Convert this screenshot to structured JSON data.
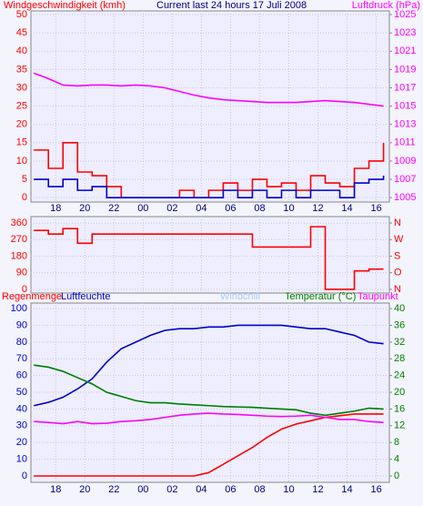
{
  "chart_data": [
    {
      "type": "line",
      "title": "Current last 24 hours 17 Juli 2008",
      "y_label": "Windgeschwindigkeit (kmh)",
      "y2_label": "Luftdruck (hPa)",
      "x": [
        16.5,
        17.5,
        18.5,
        19.5,
        20.5,
        21.5,
        22.5,
        23.5,
        24.5,
        25.5,
        26.5,
        27.5,
        28.5,
        29.5,
        30.5,
        31.5,
        32.5,
        33.5,
        34.5,
        35.5,
        36.5,
        37.5,
        38.5,
        39.5,
        40.5
      ],
      "xlim": [
        16.3,
        40.9
      ],
      "xticks": [
        18,
        20,
        22,
        {
          "value": 24,
          "label": "00"
        },
        {
          "value": 26,
          "label": "02"
        },
        {
          "value": 28,
          "label": "04"
        },
        {
          "value": 30,
          "label": "06"
        },
        {
          "value": 32,
          "label": "08"
        },
        {
          "value": 34,
          "label": "10"
        },
        {
          "value": 36,
          "label": "12"
        },
        {
          "value": 38,
          "label": "14"
        },
        {
          "value": 40,
          "label": "16"
        }
      ],
      "ylim": [
        -1.2,
        51
      ],
      "yticks": [
        0,
        5,
        10,
        15,
        20,
        25,
        30,
        35,
        40,
        45,
        50
      ],
      "ytick_color": "#ff0000",
      "y2lim": [
        1004.52,
        1025.4
      ],
      "y2ticks": [
        1005,
        1007,
        1009,
        1011,
        1013,
        1015,
        1017,
        1019,
        1021,
        1023,
        1025
      ],
      "y2tick_color": "#ff00ff",
      "grid": true,
      "series": [
        {
          "color": "#ff0000",
          "step": true,
          "values": [
            13,
            8,
            15,
            7,
            6,
            3,
            0,
            0,
            0,
            0,
            2,
            0,
            2,
            4,
            2,
            5,
            3,
            4,
            2,
            6,
            4,
            3,
            8,
            10,
            15
          ]
        },
        {
          "color": "#0000cc",
          "step": true,
          "values": [
            5,
            3,
            5,
            2,
            3,
            0,
            0,
            0,
            0,
            0,
            0,
            0,
            0,
            2,
            0,
            2,
            0,
            2,
            0,
            2,
            2,
            0,
            4,
            5,
            6
          ]
        },
        {
          "color": "#ff00ff",
          "axis": "y2",
          "values": [
            1018.6,
            1018,
            1017.3,
            1017.2,
            1017.3,
            1017.3,
            1017.2,
            1017.3,
            1017.2,
            1017,
            1016.6,
            1016.2,
            1015.9,
            1015.7,
            1015.6,
            1015.5,
            1015.4,
            1015.4,
            1015.4,
            1015.5,
            1015.6,
            1015.5,
            1015.4,
            1015.2,
            1015
          ]
        }
      ]
    },
    {
      "type": "line",
      "x": [
        16.5,
        17.5,
        18.5,
        19.5,
        20.5,
        21.5,
        22.5,
        23.5,
        24.5,
        25.5,
        26.5,
        27.5,
        28.5,
        29.5,
        30.5,
        31.5,
        32.5,
        33.5,
        34.5,
        35.5,
        36.5,
        37.5,
        38.5,
        39.5,
        40.5
      ],
      "xlim": [
        16.3,
        40.9
      ],
      "ylim": [
        -20,
        395
      ],
      "yticks": [
        0,
        90,
        180,
        270,
        360
      ],
      "ytick_color": "#ff0000",
      "y2lim": [
        -20,
        395
      ],
      "y2ticks": [
        {
          "value": 360,
          "label": "N"
        },
        {
          "value": 270,
          "label": "W"
        },
        {
          "value": 180,
          "label": "S"
        },
        {
          "value": 90,
          "label": "O"
        },
        {
          "value": 0,
          "label": "N"
        }
      ],
      "y2tick_color": "#ff0000",
      "grid": true,
      "series": [
        {
          "color": "#ff0000",
          "step": true,
          "values": [
            320,
            300,
            330,
            250,
            300,
            300,
            300,
            300,
            300,
            300,
            300,
            300,
            300,
            300,
            300,
            230,
            230,
            230,
            230,
            340,
            0,
            0,
            100,
            110,
            110
          ]
        }
      ]
    },
    {
      "type": "line",
      "x": [
        16.5,
        17.5,
        18.5,
        19.5,
        20.5,
        21.5,
        22.5,
        23.5,
        24.5,
        25.5,
        26.5,
        27.5,
        28.5,
        29.5,
        30.5,
        31.5,
        32.5,
        33.5,
        34.5,
        35.5,
        36.5,
        37.5,
        38.5,
        39.5,
        40.5
      ],
      "xlim": [
        16.3,
        40.9
      ],
      "xticks": [
        18,
        20,
        22,
        {
          "value": 24,
          "label": "00"
        },
        {
          "value": 26,
          "label": "02"
        },
        {
          "value": 28,
          "label": "04"
        },
        {
          "value": 30,
          "label": "06"
        },
        {
          "value": 32,
          "label": "08"
        },
        {
          "value": 34,
          "label": "10"
        },
        {
          "value": 36,
          "label": "12"
        },
        {
          "value": 38,
          "label": "14"
        },
        {
          "value": 40,
          "label": "16"
        }
      ],
      "ylim": [
        -3.8,
        103.3
      ],
      "yticks": [
        0,
        10,
        20,
        30,
        40,
        50,
        60,
        70,
        80,
        90,
        100
      ],
      "ytick_color": "#0000cc",
      "y2lim": [
        -1.52,
        41.32
      ],
      "y2ticks": [
        0,
        4,
        8,
        12,
        16,
        20,
        24,
        28,
        32,
        36,
        40
      ],
      "y2tick_color": "#008000",
      "grid": true,
      "series": [
        {
          "name": "Regenmenge",
          "color": "#ff0000",
          "values": [
            0,
            0,
            0,
            0,
            0,
            0,
            0,
            0,
            0,
            0,
            0,
            0,
            2,
            7,
            12,
            17,
            23,
            28,
            31,
            33,
            35,
            36,
            37,
            37,
            37
          ]
        },
        {
          "name": "Luftfeuchte",
          "color": "#0000cc",
          "values": [
            42,
            44,
            47,
            52,
            58,
            68,
            76,
            80,
            84,
            87,
            88,
            88,
            89,
            89,
            90,
            90,
            90,
            90,
            89,
            88,
            88,
            86,
            84,
            80,
            79
          ]
        },
        {
          "name": "Windchill",
          "color": "#aaccff",
          "axis": "y2",
          "values": [
            26.5,
            26,
            25,
            23.5,
            22,
            20,
            19,
            18,
            17.5,
            17.5,
            17.2,
            17,
            16.8,
            16.6,
            16.5,
            16.4,
            16.2,
            16,
            15.8,
            15,
            14.5,
            15,
            15.5,
            16.2,
            16
          ]
        },
        {
          "name": "Temperatur (°C)",
          "color": "#008000",
          "axis": "y2",
          "values": [
            26.5,
            26,
            25,
            23.5,
            22,
            20,
            19,
            18,
            17.5,
            17.5,
            17.2,
            17,
            16.8,
            16.6,
            16.5,
            16.4,
            16.2,
            16,
            15.8,
            15,
            14.5,
            15,
            15.5,
            16.2,
            16
          ]
        },
        {
          "name": "Taupunkt",
          "color": "#ff00ff",
          "axis": "y2",
          "values": [
            13,
            12.8,
            12.5,
            13,
            12.5,
            12.6,
            13,
            13.2,
            13.5,
            14,
            14.5,
            14.8,
            15,
            14.8,
            14.7,
            14.5,
            14.3,
            14.2,
            14.3,
            14.5,
            14,
            13.5,
            13.5,
            13,
            12.8
          ]
        }
      ]
    }
  ]
}
